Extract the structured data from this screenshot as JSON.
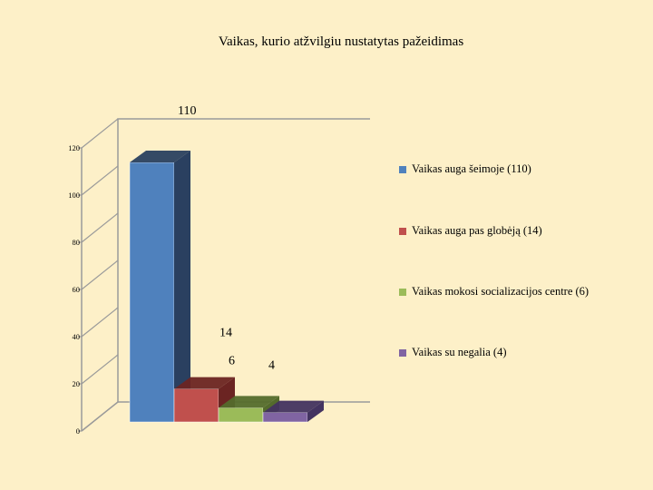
{
  "chart_data": {
    "type": "bar",
    "title": "Vaikas, kurio atžvilgiu nustatytas pažeidimas",
    "xlabel": "",
    "ylabel": "",
    "ylim": [
      0,
      120
    ],
    "y_ticks": [
      "0",
      "20",
      "40",
      "60",
      "80",
      "100",
      "120"
    ],
    "grid": false,
    "legend_position": "right",
    "series": [
      {
        "name": "Vaikas auga šeimoje (110)",
        "values": [
          110
        ],
        "data_label": "110",
        "color": "#4f81bd",
        "side_color": "#2a4060"
      },
      {
        "name": "Vaikas auga pas globėją (14)",
        "values": [
          14
        ],
        "data_label": "14",
        "color": "#c0504d",
        "side_color": "#6b2422"
      },
      {
        "name": "Vaikas mokosi socializacijos centre (6)",
        "values": [
          6
        ],
        "data_label": "6",
        "color": "#9bbb59",
        "side_color": "#546b2c"
      },
      {
        "name": "Vaikas su negalia (4)",
        "values": [
          4
        ],
        "data_label": "4",
        "color": "#8064a2",
        "side_color": "#433360"
      }
    ]
  }
}
